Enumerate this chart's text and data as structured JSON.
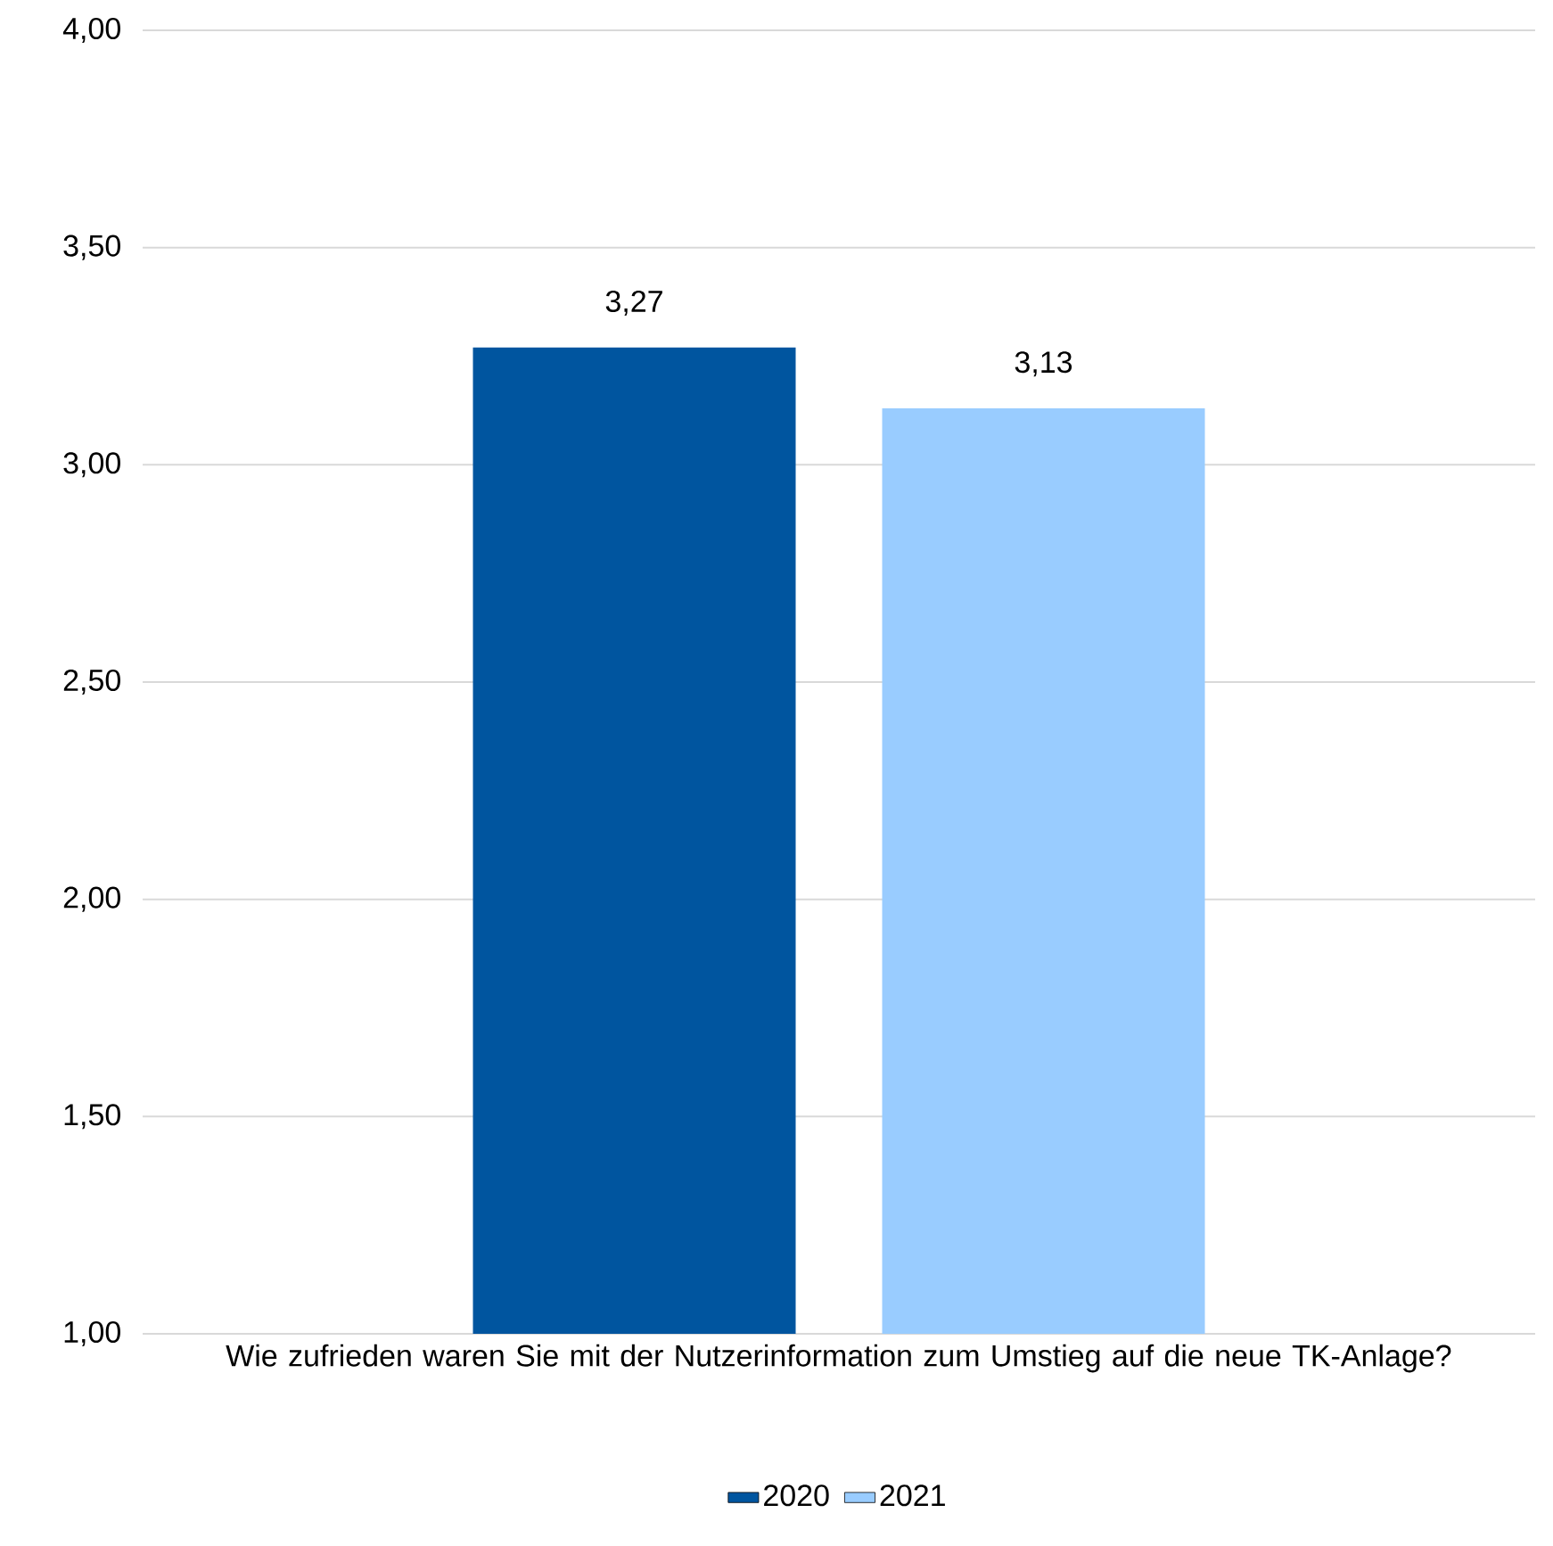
{
  "chart_data": {
    "type": "bar",
    "categories": [
      "Wie zufrieden waren Sie mit der Nutzerinformation zum Umstieg auf die neue TK-Anlage?"
    ],
    "series": [
      {
        "name": "2020",
        "color": "#00559f",
        "values": [
          3.27
        ],
        "value_labels": [
          "3,27"
        ]
      },
      {
        "name": "2021",
        "color": "#99ccff",
        "values": [
          3.13
        ],
        "value_labels": [
          "3,13"
        ]
      }
    ],
    "ylim": [
      1,
      4
    ],
    "yticks": [
      {
        "value": 1,
        "label": "1,00"
      },
      {
        "value": 1.5,
        "label": "1,50"
      },
      {
        "value": 2,
        "label": "2,00"
      },
      {
        "value": 2.5,
        "label": "2,50"
      },
      {
        "value": 3,
        "label": "3,00"
      },
      {
        "value": 3.5,
        "label": "3,50"
      },
      {
        "value": 4,
        "label": "4,00"
      }
    ],
    "grid": "y",
    "legend": "bottom"
  }
}
